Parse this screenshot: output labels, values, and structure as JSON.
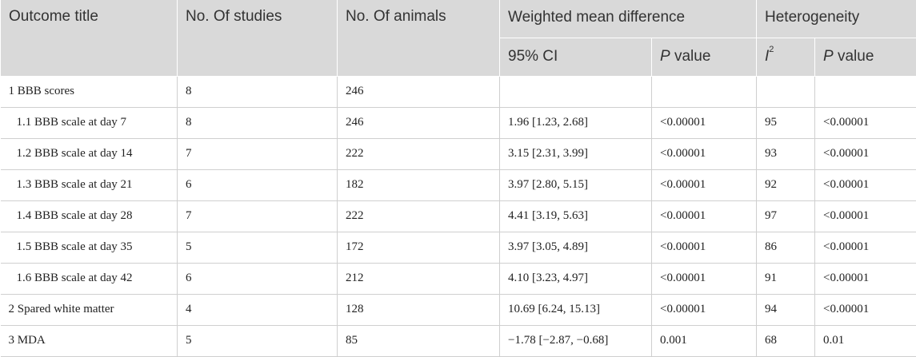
{
  "header": {
    "col_outcome": "Outcome title",
    "col_studies": "No. Of studies",
    "col_animals": "No. Of animals",
    "group_wmd": "Weighted mean difference",
    "group_het": "Heterogeneity",
    "sub_ci": "95% CI",
    "sub_p_italic": "P",
    "sub_p_rest": " value",
    "sub_i_letter": "I",
    "sub_i_sup": "2",
    "sub_p2_italic": "P",
    "sub_p2_rest": " value"
  },
  "rows": [
    {
      "title": "1 BBB scores",
      "studies": "8",
      "animals": "246",
      "ci": "",
      "p": "",
      "i2": "",
      "p2": ""
    },
    {
      "title": "1.1 BBB scale at day 7",
      "studies": "8",
      "animals": "246",
      "ci": "1.96 [1.23, 2.68]",
      "p": "<0.00001",
      "i2": "95",
      "p2": "<0.00001"
    },
    {
      "title": "1.2 BBB scale at day 14",
      "studies": "7",
      "animals": "222",
      "ci": "3.15 [2.31, 3.99]",
      "p": "<0.00001",
      "i2": "93",
      "p2": "<0.00001"
    },
    {
      "title": "1.3 BBB scale at day 21",
      "studies": "6",
      "animals": "182",
      "ci": "3.97 [2.80, 5.15]",
      "p": "<0.00001",
      "i2": "92",
      "p2": "<0.00001"
    },
    {
      "title": "1.4 BBB scale at day 28",
      "studies": "7",
      "animals": "222",
      "ci": "4.41 [3.19, 5.63]",
      "p": "<0.00001",
      "i2": "97",
      "p2": "<0.00001"
    },
    {
      "title": "1.5 BBB scale at day 35",
      "studies": "5",
      "animals": "172",
      "ci": "3.97 [3.05, 4.89]",
      "p": "<0.00001",
      "i2": "86",
      "p2": "<0.00001"
    },
    {
      "title": "1.6 BBB scale at day 42",
      "studies": "6",
      "animals": "212",
      "ci": "4.10 [3.23, 4.97]",
      "p": "<0.00001",
      "i2": "91",
      "p2": "<0.00001"
    },
    {
      "title": "2 Spared white matter",
      "studies": "4",
      "animals": "128",
      "ci": "10.69 [6.24, 15.13]",
      "p": "<0.00001",
      "i2": "94",
      "p2": "<0.00001"
    },
    {
      "title": "3 MDA",
      "studies": "5",
      "animals": "85",
      "ci": "−1.78 [−2.87, −0.68]",
      "p": "0.001",
      "i2": "68",
      "p2": "0.01"
    }
  ]
}
